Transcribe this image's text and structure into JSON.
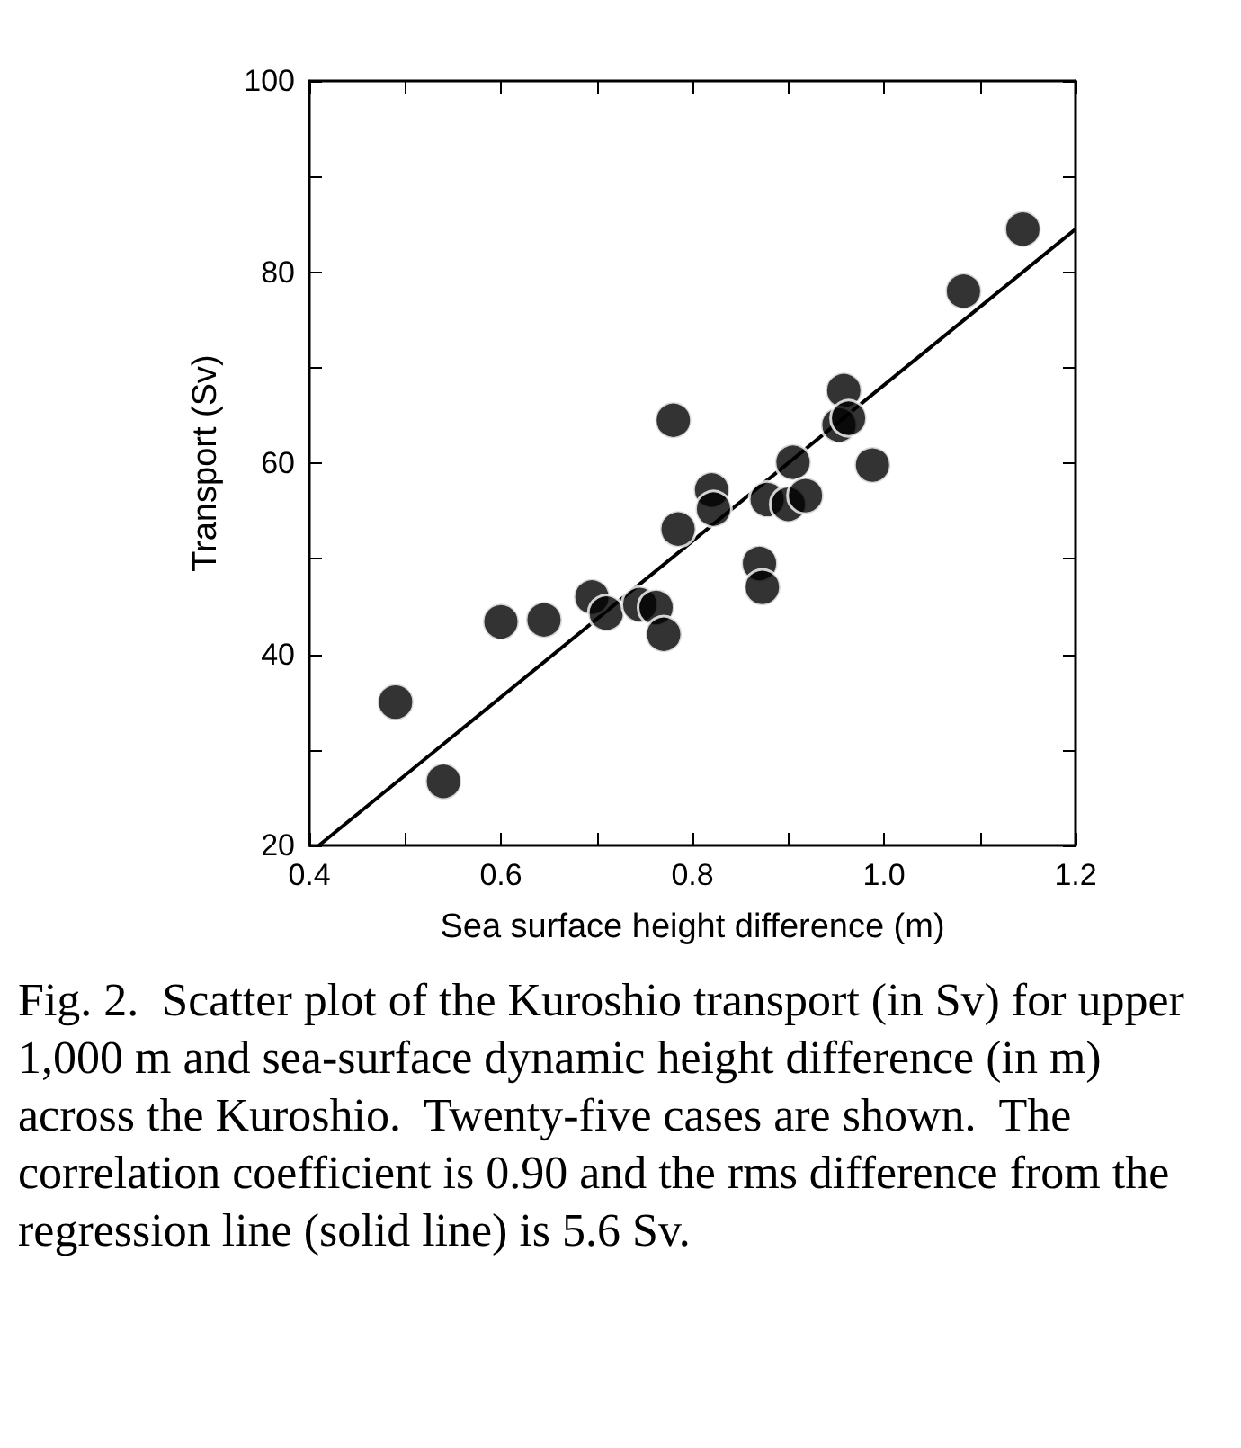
{
  "chart_data": {
    "type": "scatter",
    "xlabel": "Sea surface height difference (m)",
    "ylabel": "Transport (Sv)",
    "xlim": [
      0.4,
      1.2
    ],
    "ylim": [
      20,
      100
    ],
    "xticks": [
      0.4,
      {
        "value": 0.5,
        "label": null
      },
      0.6,
      {
        "value": 0.7,
        "label": null
      },
      0.8,
      {
        "value": 0.9,
        "label": null
      },
      {
        "value": 1,
        "label": "1.0"
      },
      {
        "value": 1.1,
        "label": null
      },
      1.2
    ],
    "yticks": [
      20,
      {
        "value": 30,
        "label": null
      },
      40,
      {
        "value": 50,
        "label": null
      },
      60,
      {
        "value": 70,
        "label": null
      },
      80,
      {
        "value": 90,
        "label": null
      },
      100
    ],
    "grid": false,
    "series": [
      {
        "color": "#000000",
        "marker": "circle",
        "x": [
          0.49,
          0.54,
          0.6,
          0.645,
          0.695,
          0.71,
          0.745,
          0.762,
          0.77,
          0.78,
          0.785,
          0.82,
          0.822,
          0.87,
          0.873,
          0.878,
          0.9,
          0.905,
          0.918,
          0.958,
          0.953,
          0.963,
          0.988,
          1.083,
          1.145
        ],
        "values": [
          35,
          26.7,
          43.4,
          43.6,
          46,
          44.3,
          45.2,
          44.9,
          42.1,
          64.5,
          53.1,
          57.2,
          55.2,
          49.5,
          47,
          56.2,
          55.7,
          60.1,
          56.6,
          67.6,
          64,
          64.7,
          59.8,
          78,
          84.5
        ]
      },
      {
        "type": "line",
        "color": "#000000",
        "line_style": "solid",
        "x": [
          0.41,
          1.2
        ],
        "values": [
          20,
          84.5
        ]
      }
    ],
    "annotations": [
      "Fig. 2.  Scatter plot of the Kuroshio transport (in Sv) for upper 1,000 m and sea-surface dynamic height difference (in m) across the Kuroshio.  Twenty-five cases are shown.  The correlation coefficient is 0.90 and the rms difference from the regression line (solid line) is 5.6 Sv."
    ]
  }
}
